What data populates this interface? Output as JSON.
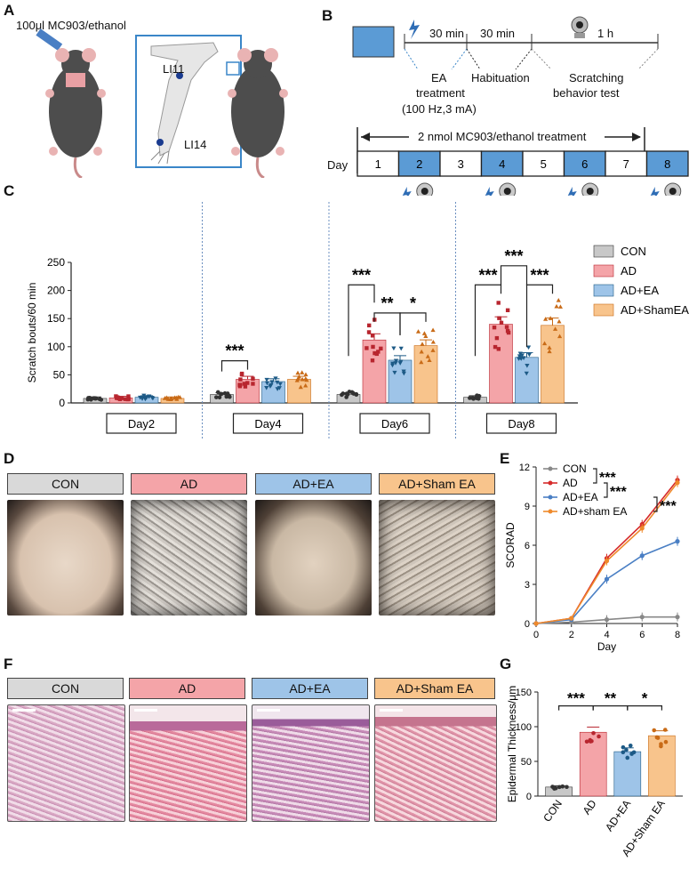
{
  "panels": {
    "A": "A",
    "B": "B",
    "C": "C",
    "D": "D",
    "E": "E",
    "F": "F",
    "G": "G"
  },
  "panelA": {
    "injection_label": "100μl MC903/ethanol",
    "acupoint_upper": "LI11",
    "acupoint_lower": "LI14"
  },
  "panelB": {
    "phase1_time": "30 min",
    "phase2_time": "30 min",
    "phase3_time": "1 h",
    "phase1_name": "EA",
    "phase1_name2": "treatment",
    "phase1_params": "(100 Hz,3 mA)",
    "phase2_name": "Habituation",
    "phase3_name": "Scratching",
    "phase3_name2": "behavior test",
    "treatment_label": "2 nmol MC903/ethanol treatment",
    "day_label": "Day",
    "days": [
      "1",
      "2",
      "3",
      "4",
      "5",
      "6",
      "7",
      "8"
    ],
    "ea_days": [
      "2",
      "4",
      "6",
      "8"
    ]
  },
  "colors": {
    "con": "#c8c8c8",
    "ad": "#f4a4a8",
    "adea": "#9ec4e8",
    "sham": "#f8c48c",
    "con_dark": "#333333",
    "ad_dark": "#b8262f",
    "adea_dark": "#1d5a86",
    "sham_dark": "#c96b17",
    "blue_box": "#5b9bd5",
    "line_con": "#888888",
    "line_ad": "#d62b2b",
    "line_adea": "#4a7fc4",
    "line_sham": "#ef8a2c"
  },
  "chart_data": [
    {
      "type": "bar",
      "panel": "C",
      "ylabel": "Scratch bouts/60 min",
      "ylim": [
        0,
        250
      ],
      "yticks": [
        "0",
        "50",
        "100",
        "150",
        "200",
        "250"
      ],
      "groups": [
        "Day2",
        "Day4",
        "Day6",
        "Day8"
      ],
      "series": [
        {
          "name": "CON",
          "values": [
            8,
            15,
            15,
            10
          ]
        },
        {
          "name": "AD",
          "values": [
            9,
            42,
            112,
            140
          ]
        },
        {
          "name": "AD+EA",
          "values": [
            10,
            38,
            76,
            81
          ]
        },
        {
          "name": "AD+ShamEA",
          "values": [
            8,
            42,
            102,
            138
          ]
        }
      ],
      "legend_position": "right",
      "significance": [
        {
          "group": "Day4",
          "label": "***"
        },
        {
          "group": "Day6",
          "label": "***"
        },
        {
          "group": "Day6",
          "label": "**"
        },
        {
          "group": "Day6",
          "label": "*"
        },
        {
          "group": "Day8",
          "label": "***"
        },
        {
          "group": "Day8",
          "label": "***"
        },
        {
          "group": "Day8",
          "label": "***"
        }
      ]
    },
    {
      "type": "line",
      "panel": "E",
      "xlabel": "Day",
      "ylabel": "SCORAD",
      "x": [
        0,
        2,
        4,
        6,
        8
      ],
      "xticks": [
        "0",
        "2",
        "4",
        "6",
        "8"
      ],
      "yticks": [
        "0",
        "3",
        "6",
        "9",
        "12"
      ],
      "ylim": [
        0,
        12
      ],
      "series": [
        {
          "name": "CON",
          "values": [
            0,
            0.1,
            0.3,
            0.5,
            0.5
          ]
        },
        {
          "name": "AD",
          "values": [
            0,
            0.4,
            5.0,
            7.6,
            11.0
          ]
        },
        {
          "name": "AD+EA",
          "values": [
            0,
            0.3,
            3.4,
            5.2,
            6.3
          ]
        },
        {
          "name": "AD+sham EA",
          "values": [
            0,
            0.4,
            4.8,
            7.3,
            10.8
          ]
        }
      ],
      "significance": [
        "***",
        "***",
        "***"
      ]
    },
    {
      "type": "bar",
      "panel": "G",
      "ylabel": "Epidermal Thickness/μm",
      "ylim": [
        0,
        150
      ],
      "yticks": [
        "0",
        "50",
        "100",
        "150"
      ],
      "categories": [
        "CON",
        "AD",
        "AD+EA",
        "AD+Sham EA"
      ],
      "values": [
        13,
        92,
        64,
        87
      ],
      "significance": [
        "***",
        "**",
        "*"
      ]
    }
  ],
  "panelD": {
    "labels": [
      "CON",
      "AD",
      "AD+EA",
      "AD+Sham EA"
    ]
  },
  "panelF": {
    "labels": [
      "CON",
      "AD",
      "AD+EA",
      "AD+Sham EA"
    ]
  }
}
